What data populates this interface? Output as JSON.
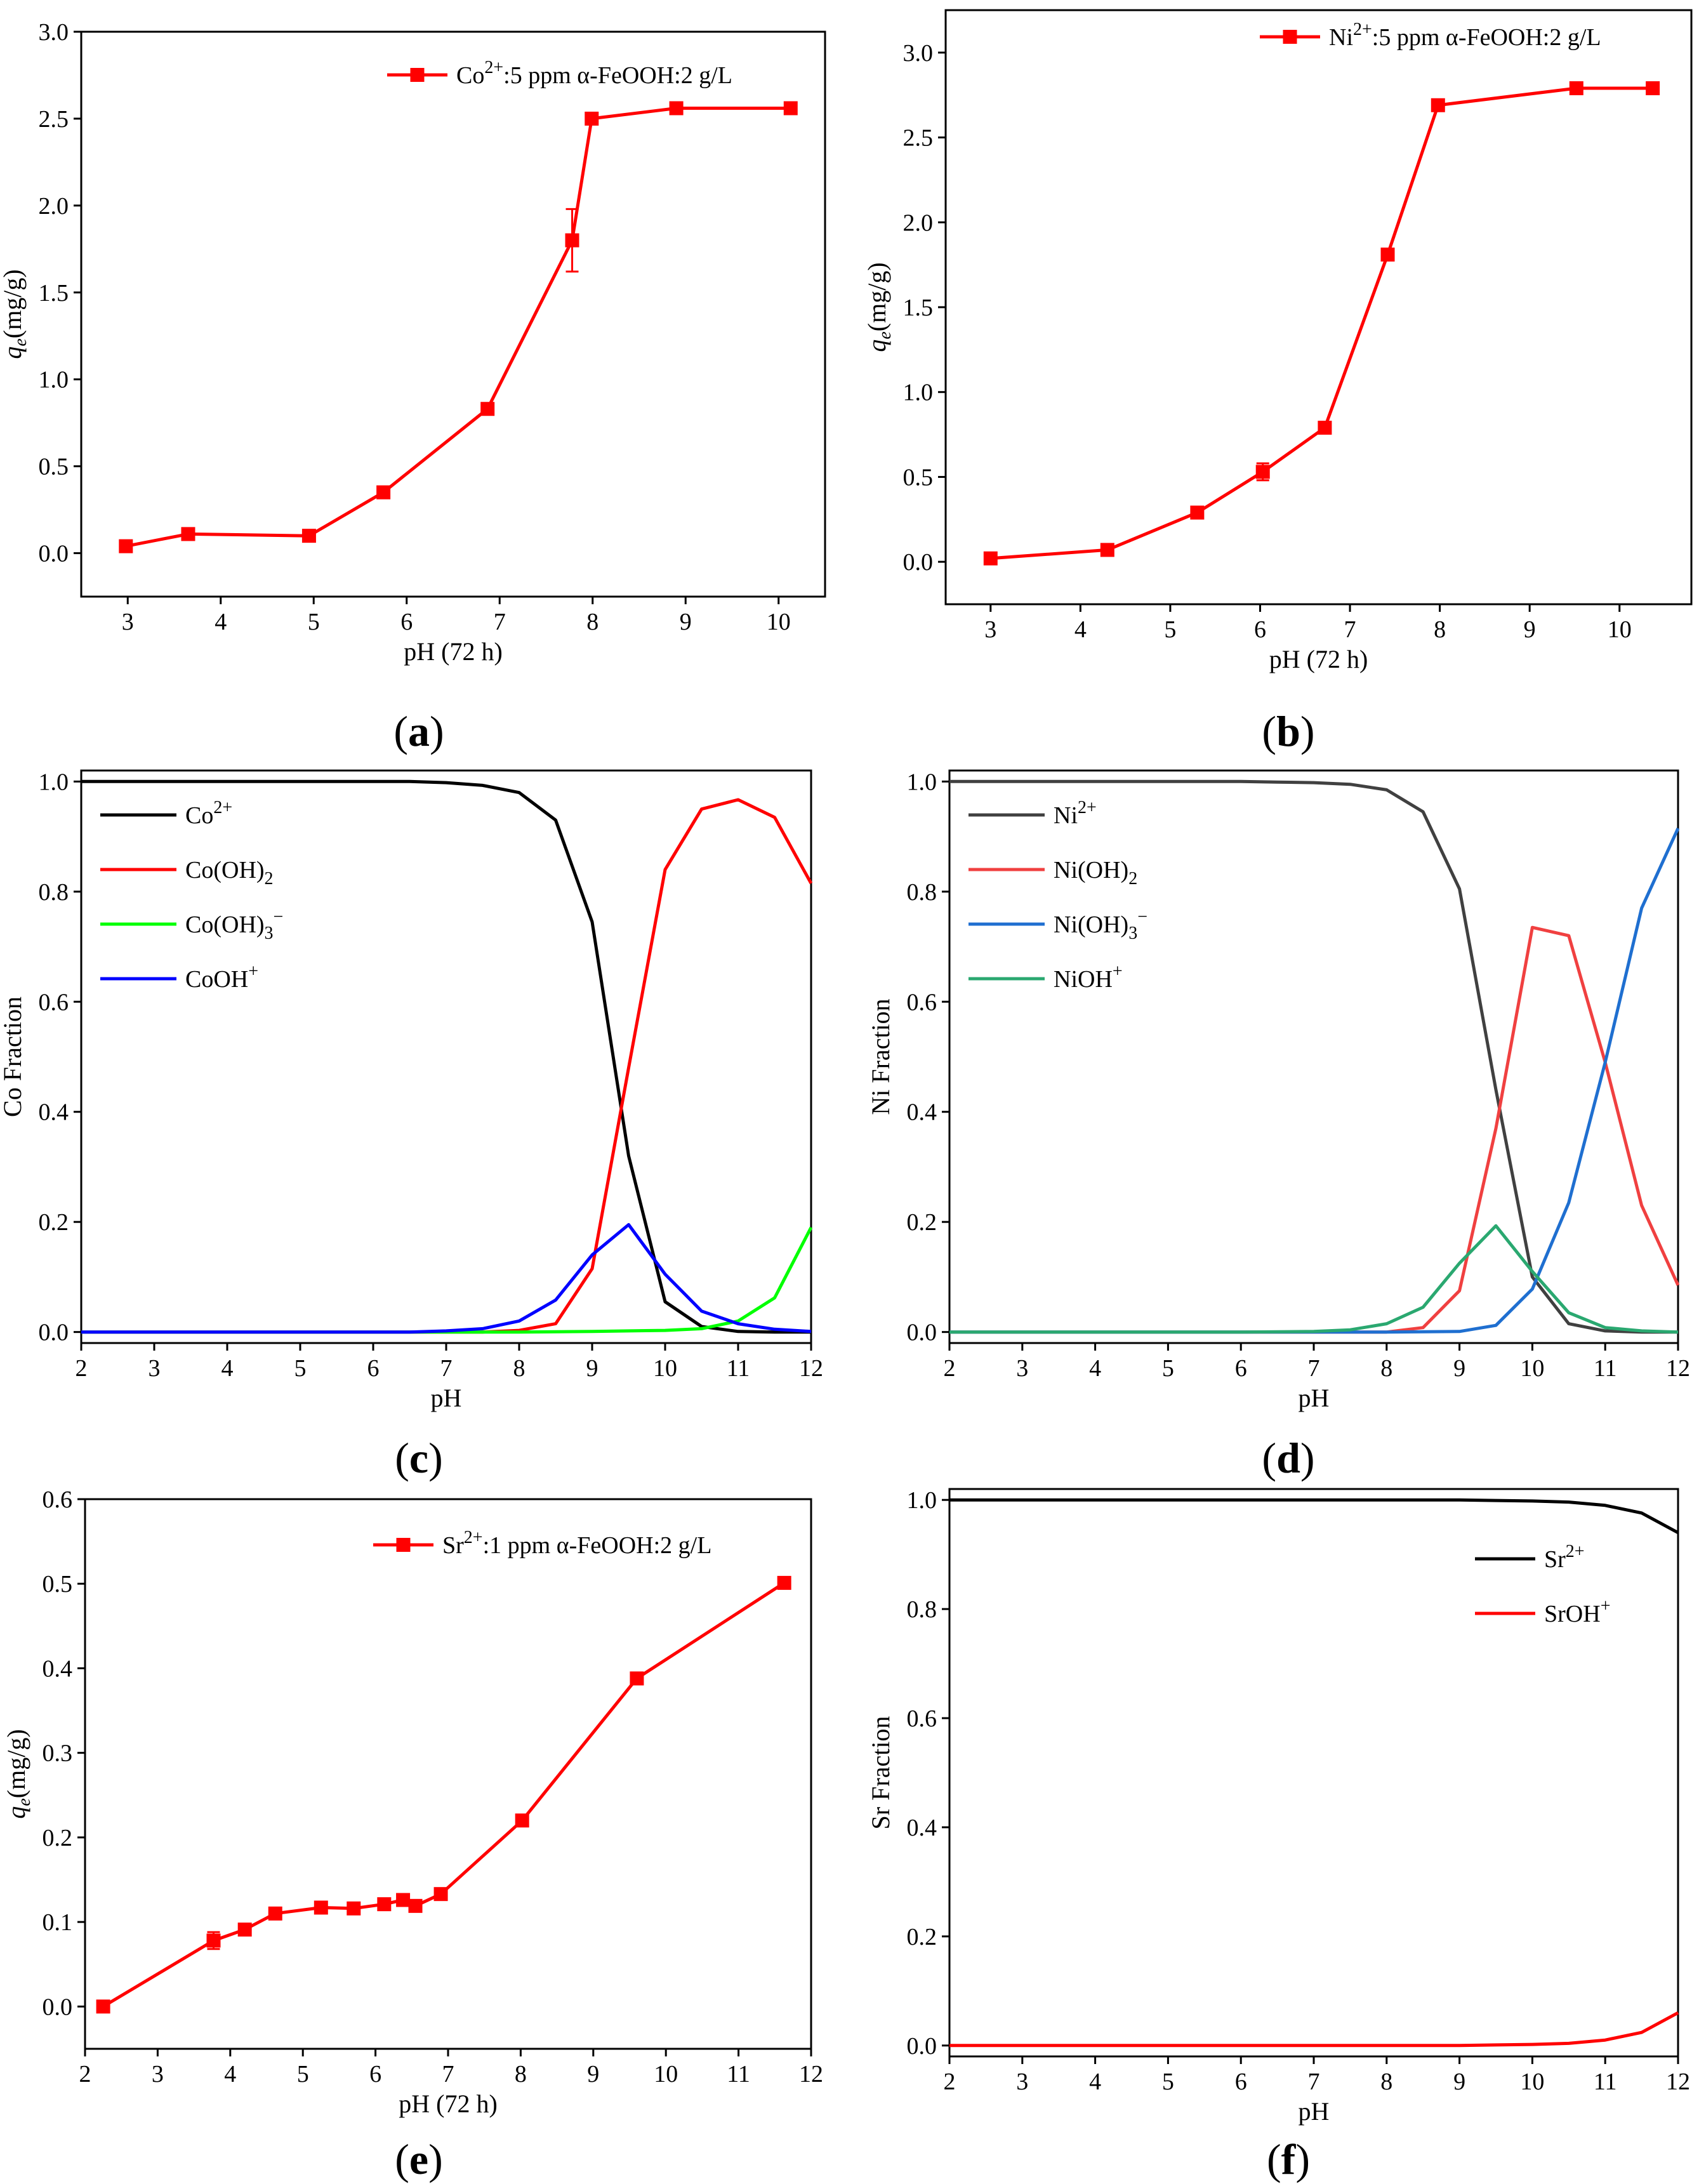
{
  "chart_data": [
    {
      "id": "a",
      "type": "line",
      "panel_label": "a",
      "xlabel": "pH (72 h)",
      "ylabel_main": "q",
      "ylabel_sub": "e",
      "ylabel_rest": "(mg/g)",
      "xlim": [
        2.5,
        10.5
      ],
      "ylim": [
        -0.25,
        3.0
      ],
      "xticks": [
        3,
        4,
        5,
        6,
        7,
        8,
        9,
        10
      ],
      "yticks": [
        0.0,
        0.5,
        1.0,
        1.5,
        2.0,
        2.5,
        3.0
      ],
      "ytick_decimals": 1,
      "legend_position": "top-right",
      "series": [
        {
          "name": "Co2+ 5 ppm",
          "legend_parts": [
            "Co",
            "2+",
            ":5 ppm α-FeOOH:2 g/L"
          ],
          "color": "#ff0000",
          "marker": "square",
          "x": [
            2.98,
            3.65,
            4.95,
            5.75,
            6.87,
            7.78,
            7.99,
            8.9,
            10.13
          ],
          "y": [
            0.04,
            0.11,
            0.1,
            0.35,
            0.83,
            1.8,
            2.5,
            2.56,
            2.56
          ],
          "yerr": [
            0,
            0,
            0.02,
            0,
            0,
            0.18,
            0,
            0,
            0
          ]
        }
      ]
    },
    {
      "id": "b",
      "type": "line",
      "panel_label": "b",
      "xlabel": "pH (72 h)",
      "ylabel_main": "q",
      "ylabel_sub": "e",
      "ylabel_rest": "(mg/g)",
      "xlim": [
        2.5,
        10.8
      ],
      "ylim": [
        -0.25,
        3.25
      ],
      "xticks": [
        3,
        4,
        5,
        6,
        7,
        8,
        9,
        10
      ],
      "yticks": [
        0.0,
        0.5,
        1.0,
        1.5,
        2.0,
        2.5,
        3.0
      ],
      "ytick_decimals": 1,
      "legend_position": "top-right",
      "series": [
        {
          "name": "Ni2+ 5 ppm",
          "legend_parts": [
            "Ni",
            "2+",
            ":5 ppm α-FeOOH:2 g/L"
          ],
          "color": "#ff0000",
          "marker": "square",
          "x": [
            3.0,
            4.3,
            5.3,
            6.03,
            6.72,
            7.42,
            7.98,
            9.52,
            10.37
          ],
          "y": [
            0.02,
            0.07,
            0.29,
            0.53,
            0.79,
            1.81,
            2.69,
            2.79,
            2.79
          ],
          "yerr": [
            0,
            0,
            0,
            0.05,
            0,
            0,
            0,
            0,
            0
          ]
        }
      ]
    },
    {
      "id": "c",
      "type": "line",
      "panel_label": "c",
      "xlabel": "pH",
      "ylabel_main": "Co Fraction",
      "xlim": [
        2,
        12
      ],
      "ylim": [
        -0.02,
        1.02
      ],
      "xticks": [
        2,
        3,
        4,
        5,
        6,
        7,
        8,
        9,
        10,
        11,
        12
      ],
      "yticks": [
        0.0,
        0.2,
        0.4,
        0.6,
        0.8,
        1.0
      ],
      "ytick_decimals": 1,
      "legend_position": "top-left",
      "series": [
        {
          "name": "Co2+",
          "legend_parts": [
            "Co",
            "2+",
            ""
          ],
          "color": "#000000",
          "x": [
            2,
            3,
            4,
            5,
            6,
            6.5,
            7,
            7.5,
            8,
            8.5,
            9,
            9.5,
            10,
            10.5,
            11,
            11.5,
            12
          ],
          "y": [
            1.0,
            1.0,
            1.0,
            1.0,
            1.0,
            1.0,
            0.998,
            0.993,
            0.98,
            0.93,
            0.745,
            0.32,
            0.055,
            0.01,
            0.001,
            0.0,
            0.0
          ]
        },
        {
          "name": "Co(OH)2",
          "legend_parts": [
            "Co(OH)",
            "2",
            ""
          ],
          "legend_script": "sub",
          "color": "#ff0000",
          "x": [
            2,
            3,
            4,
            5,
            6,
            7,
            7.5,
            8,
            8.5,
            9,
            9.5,
            10,
            10.5,
            11,
            11.5,
            12
          ],
          "y": [
            0,
            0,
            0,
            0,
            0,
            0,
            0.0,
            0.003,
            0.015,
            0.115,
            0.48,
            0.84,
            0.95,
            0.967,
            0.935,
            0.815
          ]
        },
        {
          "name": "Co(OH)3−",
          "legend_parts": [
            "Co(OH)",
            "3",
            "−"
          ],
          "legend_script": "subsup",
          "color": "#00ff00",
          "x": [
            2,
            3,
            4,
            5,
            6,
            7,
            8,
            9,
            9.5,
            10,
            10.5,
            11,
            11.5,
            12
          ],
          "y": [
            0,
            0,
            0,
            0,
            0,
            0,
            0,
            0.001,
            0.002,
            0.003,
            0.006,
            0.02,
            0.062,
            0.19
          ]
        },
        {
          "name": "CoOH+",
          "legend_parts": [
            "CoOH",
            "+",
            ""
          ],
          "color": "#0000ff",
          "x": [
            2,
            3,
            4,
            5,
            6,
            6.5,
            7,
            7.5,
            8,
            8.5,
            9,
            9.5,
            10,
            10.5,
            11,
            11.5,
            12
          ],
          "y": [
            0,
            0,
            0,
            0,
            0,
            0.0,
            0.002,
            0.006,
            0.02,
            0.058,
            0.14,
            0.195,
            0.105,
            0.038,
            0.015,
            0.005,
            0.001
          ]
        }
      ]
    },
    {
      "id": "d",
      "type": "line",
      "panel_label": "d",
      "xlabel": "pH",
      "ylabel_main": "Ni Fraction",
      "xlim": [
        2,
        12
      ],
      "ylim": [
        -0.02,
        1.02
      ],
      "xticks": [
        2,
        3,
        4,
        5,
        6,
        7,
        8,
        9,
        10,
        11,
        12
      ],
      "yticks": [
        0.0,
        0.2,
        0.4,
        0.6,
        0.8,
        1.0
      ],
      "ytick_decimals": 1,
      "legend_position": "top-left",
      "series": [
        {
          "name": "Ni2+",
          "legend_parts": [
            "Ni",
            "2+",
            ""
          ],
          "color": "#404040",
          "x": [
            2,
            3,
            4,
            5,
            6,
            6.5,
            7,
            7.5,
            8,
            8.5,
            9,
            9.5,
            10,
            10.5,
            11,
            11.5,
            12
          ],
          "y": [
            1.0,
            1.0,
            1.0,
            1.0,
            1.0,
            0.999,
            0.998,
            0.995,
            0.985,
            0.945,
            0.805,
            0.44,
            0.1,
            0.015,
            0.002,
            0.0,
            0.0
          ]
        },
        {
          "name": "Ni(OH)2",
          "legend_parts": [
            "Ni(OH)",
            "2",
            ""
          ],
          "legend_script": "sub",
          "color": "#f04040",
          "x": [
            2,
            3,
            4,
            5,
            6,
            7,
            8,
            8.5,
            9,
            9.5,
            10,
            10.5,
            11,
            11.5,
            12
          ],
          "y": [
            0,
            0,
            0,
            0,
            0,
            0,
            0,
            0.008,
            0.075,
            0.37,
            0.735,
            0.72,
            0.49,
            0.23,
            0.085
          ]
        },
        {
          "name": "Ni(OH)3−",
          "legend_parts": [
            "Ni(OH)",
            "3",
            "−"
          ],
          "legend_script": "subsup",
          "color": "#1f6fd0",
          "x": [
            2,
            3,
            4,
            5,
            6,
            7,
            8,
            9,
            9.5,
            10,
            10.5,
            11,
            11.5,
            12
          ],
          "y": [
            0,
            0,
            0,
            0,
            0,
            0,
            0,
            0.001,
            0.012,
            0.078,
            0.235,
            0.49,
            0.77,
            0.915
          ]
        },
        {
          "name": "NiOH+",
          "legend_parts": [
            "NiOH",
            "+",
            ""
          ],
          "color": "#2aa870",
          "x": [
            2,
            3,
            4,
            5,
            6,
            7,
            7.5,
            8,
            8.5,
            9,
            9.5,
            10,
            10.5,
            11,
            11.5,
            12
          ],
          "y": [
            0,
            0,
            0,
            0,
            0,
            0.001,
            0.004,
            0.015,
            0.045,
            0.125,
            0.193,
            0.11,
            0.035,
            0.008,
            0.002,
            0.0
          ]
        }
      ]
    },
    {
      "id": "e",
      "type": "line",
      "panel_label": "e",
      "xlabel": "pH (72 h)",
      "ylabel_main": "q",
      "ylabel_sub": "e",
      "ylabel_rest": "(mg/g)",
      "xlim": [
        2,
        12
      ],
      "ylim": [
        -0.05,
        0.6
      ],
      "xticks": [
        2,
        3,
        4,
        5,
        6,
        7,
        8,
        9,
        10,
        11,
        12
      ],
      "yticks": [
        0.0,
        0.1,
        0.2,
        0.3,
        0.4,
        0.5,
        0.6
      ],
      "ytick_decimals": 1,
      "legend_position": "top-right",
      "series": [
        {
          "name": "Sr2+ 1 ppm",
          "legend_parts": [
            "Sr",
            "2+",
            ":1 ppm α-FeOOH:2 g/L"
          ],
          "color": "#ff0000",
          "marker": "square",
          "x": [
            2.25,
            3.77,
            4.2,
            4.62,
            5.25,
            5.7,
            6.12,
            6.38,
            6.55,
            6.9,
            8.02,
            9.6,
            11.63
          ],
          "y": [
            0.0,
            0.078,
            0.091,
            0.11,
            0.117,
            0.116,
            0.121,
            0.126,
            0.119,
            0.133,
            0.22,
            0.388,
            0.501
          ],
          "yerr": [
            0,
            0.01,
            0,
            0.007,
            0,
            0,
            0.004,
            0,
            0,
            0,
            0,
            0.007,
            0
          ]
        }
      ]
    },
    {
      "id": "f",
      "type": "line",
      "panel_label": "f",
      "xlabel": "pH",
      "ylabel_main": "Sr Fraction",
      "xlim": [
        2,
        12
      ],
      "ylim": [
        -0.02,
        1.02
      ],
      "xticks": [
        2,
        3,
        4,
        5,
        6,
        7,
        8,
        9,
        10,
        11,
        12
      ],
      "yticks": [
        0.0,
        0.2,
        0.4,
        0.6,
        0.8,
        1.0
      ],
      "ytick_decimals": 1,
      "legend_position": "top-right",
      "series": [
        {
          "name": "Sr2+",
          "legend_parts": [
            "Sr",
            "2+",
            ""
          ],
          "color": "#000000",
          "x": [
            2,
            3,
            4,
            5,
            6,
            7,
            8,
            9,
            9.5,
            10,
            10.5,
            11,
            11.5,
            12
          ],
          "y": [
            1.0,
            1.0,
            1.0,
            1.0,
            1.0,
            1.0,
            1.0,
            1.0,
            0.999,
            0.998,
            0.996,
            0.99,
            0.976,
            0.94
          ]
        },
        {
          "name": "SrOH+",
          "legend_parts": [
            "SrOH",
            "+",
            ""
          ],
          "color": "#ff0000",
          "x": [
            2,
            3,
            4,
            5,
            6,
            7,
            8,
            9,
            9.5,
            10,
            10.5,
            11,
            11.5,
            12
          ],
          "y": [
            0,
            0,
            0,
            0,
            0,
            0,
            0,
            0,
            0.001,
            0.002,
            0.004,
            0.01,
            0.024,
            0.06
          ]
        }
      ]
    }
  ]
}
